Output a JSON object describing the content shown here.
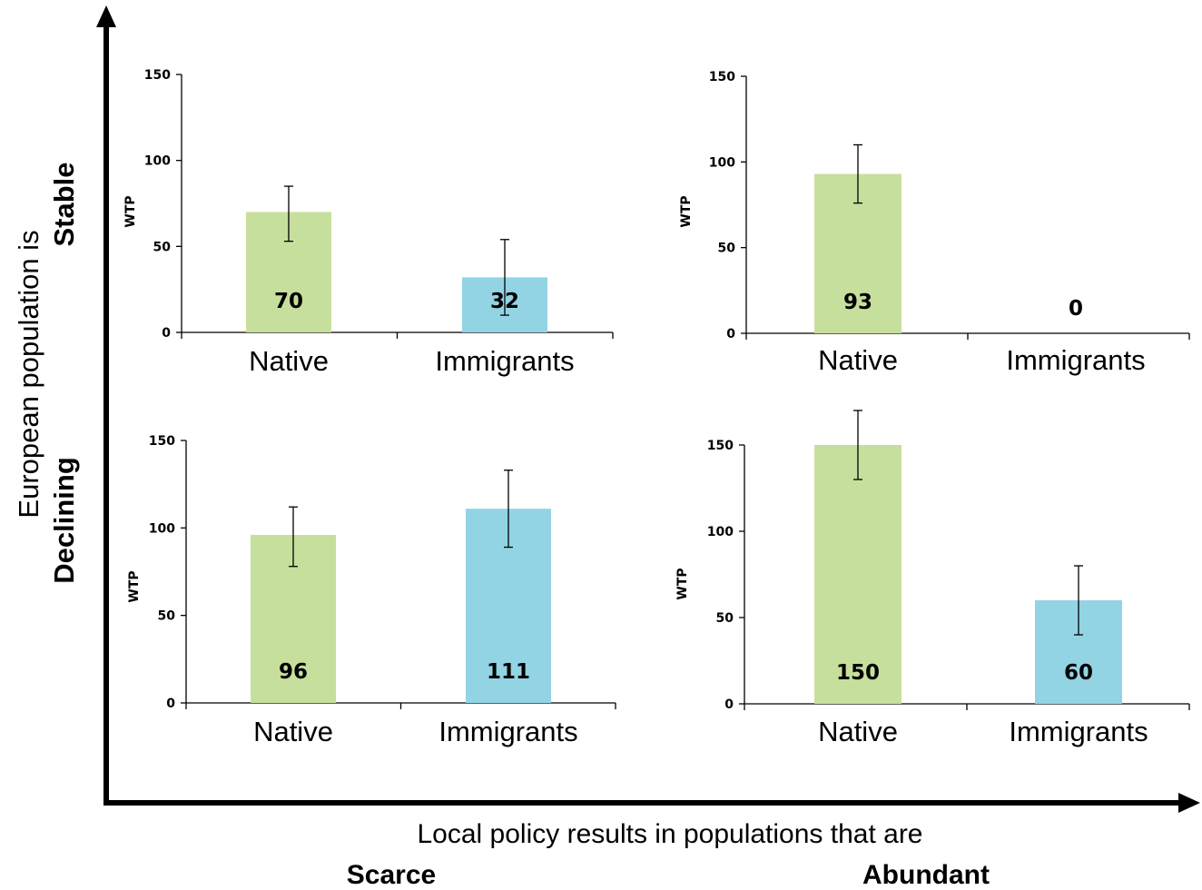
{
  "outer": {
    "y_axis_label": "European population is",
    "y_levels": [
      "Stable",
      "Declining"
    ],
    "x_axis_label": "Local policy results in populations that  are",
    "x_levels": [
      "Scarce",
      "Abundant"
    ]
  },
  "colors": {
    "native": "#c7df9c",
    "immigrants": "#93d4e4"
  },
  "chart_data": [
    {
      "type": "bar",
      "panel": "stable-scarce",
      "categories": [
        "Native",
        "Immigrants"
      ],
      "values": [
        70,
        32
      ],
      "value_labels": [
        "70",
        "32"
      ],
      "error_bars": [
        [
          53,
          85
        ],
        [
          10,
          54
        ]
      ],
      "ylabel": "WTP",
      "ylim": [
        0,
        150
      ],
      "yticks": [
        0,
        50,
        100,
        150
      ]
    },
    {
      "type": "bar",
      "panel": "stable-abundant",
      "categories": [
        "Native",
        "Immigrants"
      ],
      "values": [
        93,
        0
      ],
      "value_labels": [
        "93",
        "0"
      ],
      "error_bars": [
        [
          76,
          110
        ],
        null
      ],
      "ylabel": "WTP",
      "ylim": [
        0,
        150
      ],
      "yticks": [
        0,
        50,
        100,
        150
      ]
    },
    {
      "type": "bar",
      "panel": "declining-scarce",
      "categories": [
        "Native",
        "Immigrants"
      ],
      "values": [
        96,
        111
      ],
      "value_labels": [
        "96",
        "111"
      ],
      "error_bars": [
        [
          78,
          112
        ],
        [
          89,
          133
        ]
      ],
      "ylabel": "WTP",
      "ylim": [
        0,
        150
      ],
      "yticks": [
        0,
        50,
        100,
        150
      ]
    },
    {
      "type": "bar",
      "panel": "declining-abundant",
      "categories": [
        "Native",
        "Immigrants"
      ],
      "values": [
        150,
        60
      ],
      "value_labels": [
        "150",
        "60"
      ],
      "error_bars": [
        [
          130,
          170
        ],
        [
          40,
          80
        ]
      ],
      "ylabel": "WTP",
      "ylim": [
        0,
        150
      ],
      "yticks": [
        0,
        50,
        100,
        150
      ]
    }
  ]
}
